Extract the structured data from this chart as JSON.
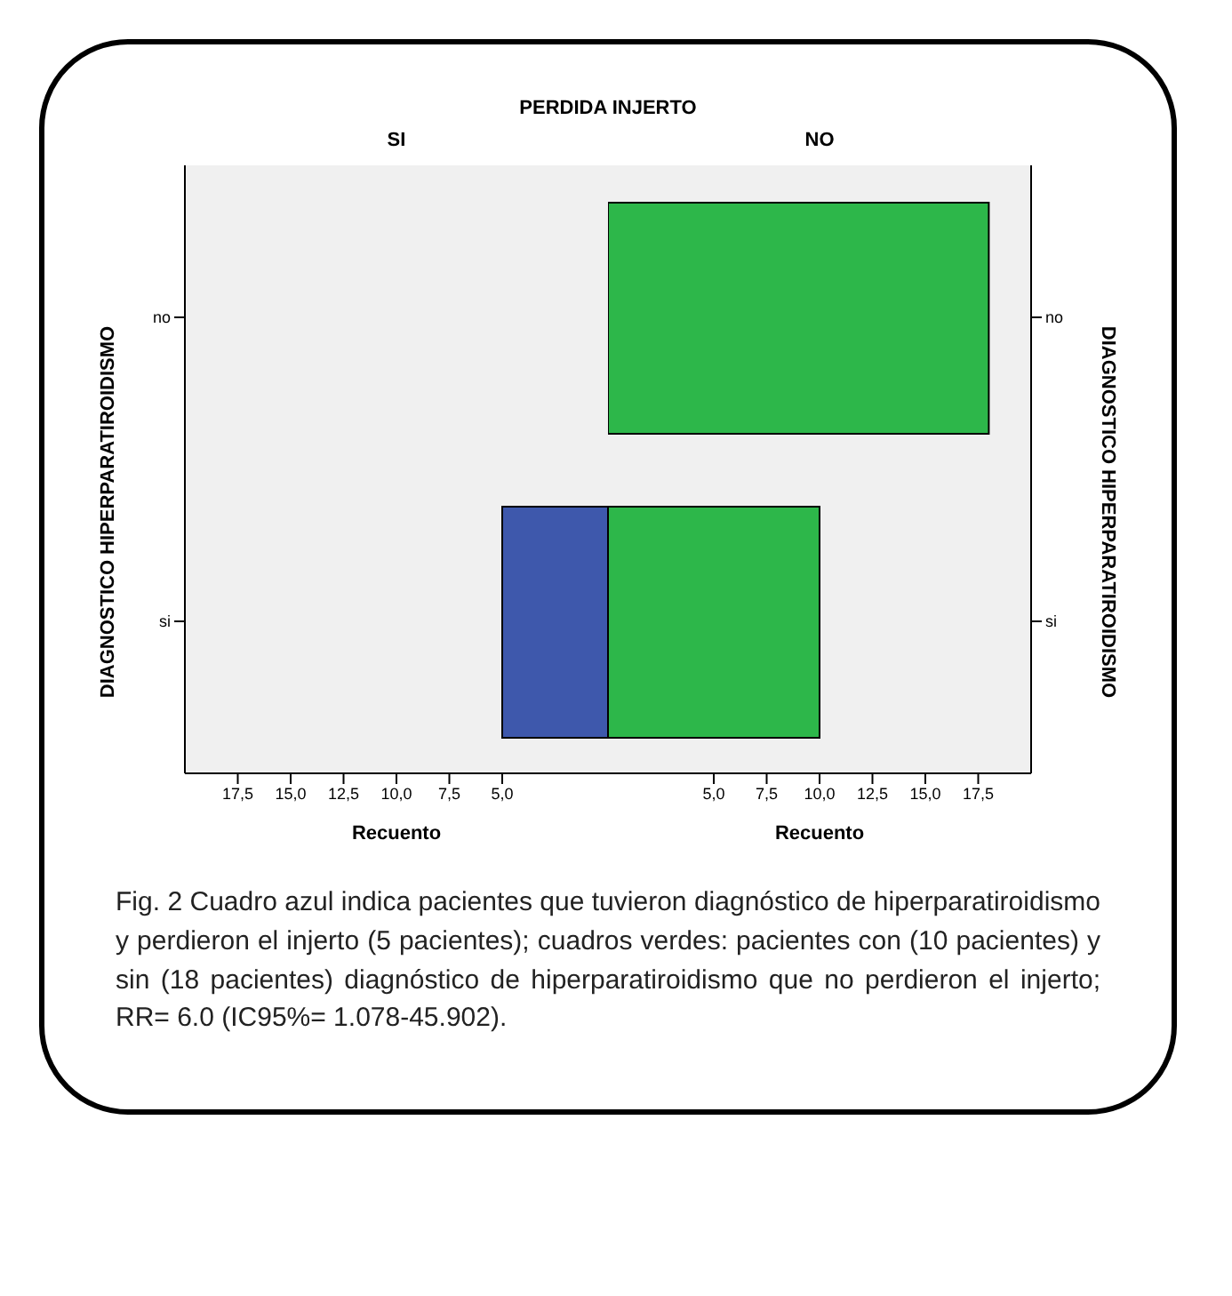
{
  "chart_data": [
    {
      "type": "bar",
      "orientation": "horizontal",
      "title": "PERDIDA INJERTO",
      "subtitle": "SI",
      "ylabel": "DIAGNOSTICO HIPERPARATIROIDISMO",
      "xlabel": "Recuento",
      "categories": [
        "no",
        "si"
      ],
      "values": [
        null,
        5
      ],
      "color": "#3e58ac",
      "xlim": [
        20,
        0
      ],
      "xticks": [
        {
          "value": 17.5,
          "label": "17,5"
        },
        {
          "value": 15,
          "label": "15,0"
        },
        {
          "value": 12.5,
          "label": "12,5"
        },
        {
          "value": 10,
          "label": "10,0"
        },
        {
          "value": 7.5,
          "label": "7,5"
        },
        {
          "value": 5,
          "label": "5,0"
        }
      ]
    },
    {
      "type": "bar",
      "orientation": "horizontal",
      "subtitle": "NO",
      "y2label": "DIAGNOSTICO HIPERPARATIROIDISMO",
      "xlabel": "Recuento",
      "categories": [
        "no",
        "si"
      ],
      "values": [
        18,
        10
      ],
      "color": "#2db74a",
      "xlim": [
        0,
        20
      ],
      "xticks": [
        {
          "value": 5,
          "label": "5,0"
        },
        {
          "value": 7.5,
          "label": "7,5"
        },
        {
          "value": 10,
          "label": "10,0"
        },
        {
          "value": 12.5,
          "label": "12,5"
        },
        {
          "value": 15,
          "label": "15,0"
        },
        {
          "value": 17.5,
          "label": "17,5"
        }
      ],
      "annotations": [
        "Fig. 2 Cuadro azul indica pacientes que tuvieron diagnóstico de hiperparatiroidismo y perdieron el injerto (5 pacientes); cuadros verdes: pacientes con (10 pacientes) y sin (18 pacientes) diagnóstico de hiperparatiroidismo que no perdieron el injerto; RR= 6.0 (IC95%= 1.078-45.902)."
      ]
    }
  ]
}
